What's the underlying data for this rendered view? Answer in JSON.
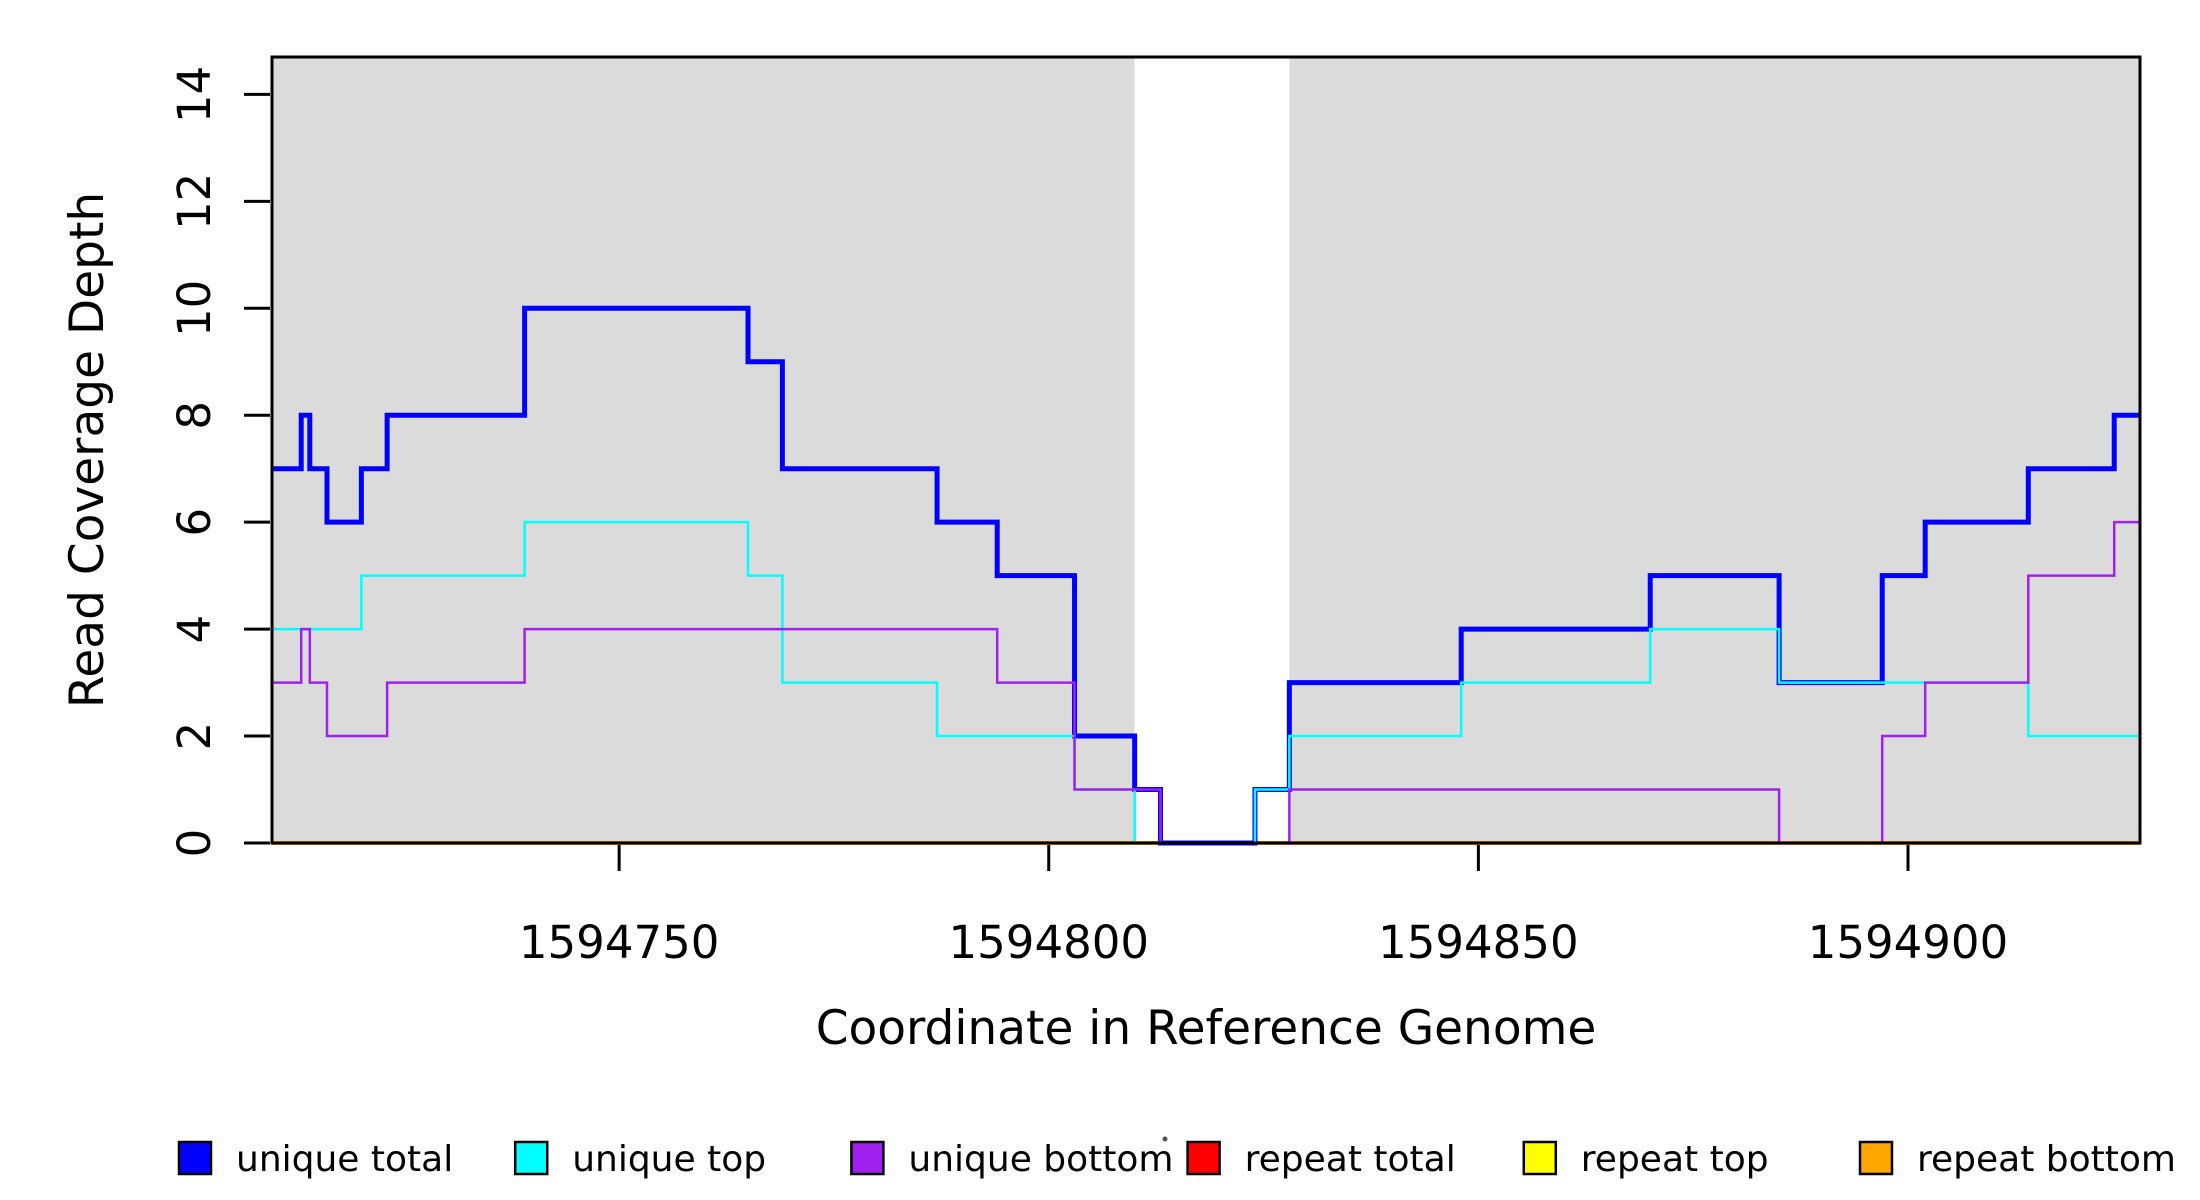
{
  "chart_data": {
    "type": "step-line",
    "title": "",
    "xlabel": "Coordinate in Reference Genome",
    "ylabel": "Read Coverage Depth",
    "xlim": [
      1594709.6,
      1594927.0
    ],
    "ylim": [
      0,
      14.7
    ],
    "grid": false,
    "x_ticks": [
      {
        "value": 1594750,
        "label": "1594750"
      },
      {
        "value": 1594800,
        "label": "1594800"
      },
      {
        "value": 1594850,
        "label": "1594850"
      },
      {
        "value": 1594900,
        "label": "1594900"
      }
    ],
    "y_ticks": [
      {
        "value": 0,
        "label": "0"
      },
      {
        "value": 2,
        "label": "2"
      },
      {
        "value": 4,
        "label": "4"
      },
      {
        "value": 6,
        "label": "6"
      },
      {
        "value": 8,
        "label": "8"
      },
      {
        "value": 10,
        "label": "10"
      },
      {
        "value": 12,
        "label": "12"
      },
      {
        "value": 14,
        "label": "14"
      }
    ],
    "background_bands": [
      {
        "name": "shaded-region-left",
        "x0": 1594709.6,
        "x1": 1594810.0,
        "color": "#dbdbdb"
      },
      {
        "name": "shaded-region-right",
        "x0": 1594828.0,
        "x1": 1594927.0,
        "color": "#dbdbdb"
      }
    ],
    "gap_band": {
      "name": "unshaded-gap",
      "x0": 1594810.0,
      "x1": 1594828.0,
      "color": "#ffffff"
    },
    "series": [
      {
        "name": "repeat total",
        "color": "#ff0000",
        "stroke_width": 3.5,
        "steps": [
          [
            1594710,
            0
          ]
        ]
      },
      {
        "name": "repeat top",
        "color": "#ffff00",
        "stroke_width": 2.5,
        "steps": [
          [
            1594710,
            0
          ]
        ]
      },
      {
        "name": "repeat bottom",
        "color": "#ffa500",
        "stroke_width": 3.5,
        "steps": [
          [
            1594710,
            0
          ]
        ]
      },
      {
        "name": "unique total",
        "color": "#0000ff",
        "stroke_width": 5,
        "steps": [
          [
            1594710,
            7
          ],
          [
            1594713,
            8
          ],
          [
            1594714,
            7
          ],
          [
            1594716,
            6
          ],
          [
            1594720,
            7
          ],
          [
            1594723,
            8
          ],
          [
            1594739,
            10
          ],
          [
            1594765,
            9
          ],
          [
            1594769,
            7
          ],
          [
            1594787,
            6
          ],
          [
            1594794,
            5
          ],
          [
            1594803,
            2
          ],
          [
            1594810,
            1
          ],
          [
            1594813,
            0
          ],
          [
            1594824,
            1
          ],
          [
            1594828,
            3
          ],
          [
            1594848,
            4
          ],
          [
            1594870,
            5
          ],
          [
            1594885,
            3
          ],
          [
            1594897,
            5
          ],
          [
            1594902,
            6
          ],
          [
            1594914,
            7
          ],
          [
            1594924,
            8
          ]
        ]
      },
      {
        "name": "unique top",
        "color": "#00ffff",
        "stroke_width": 2.5,
        "steps": [
          [
            1594710,
            4
          ],
          [
            1594720,
            5
          ],
          [
            1594739,
            6
          ],
          [
            1594765,
            5
          ],
          [
            1594769,
            3
          ],
          [
            1594787,
            2
          ],
          [
            1594803,
            1
          ],
          [
            1594810,
            0
          ],
          [
            1594824,
            1
          ],
          [
            1594828,
            2
          ],
          [
            1594848,
            3
          ],
          [
            1594870,
            4
          ],
          [
            1594885,
            3
          ],
          [
            1594914,
            2
          ]
        ]
      },
      {
        "name": "unique bottom",
        "color": "#a020f0",
        "stroke_width": 2.5,
        "steps": [
          [
            1594710,
            3
          ],
          [
            1594713,
            4
          ],
          [
            1594714,
            3
          ],
          [
            1594716,
            2
          ],
          [
            1594723,
            3
          ],
          [
            1594739,
            4
          ],
          [
            1594794,
            3
          ],
          [
            1594803,
            1
          ],
          [
            1594813,
            0
          ],
          [
            1594828,
            1
          ],
          [
            1594885,
            0
          ],
          [
            1594897,
            2
          ],
          [
            1594902,
            3
          ],
          [
            1594914,
            5
          ],
          [
            1594924,
            6
          ]
        ]
      }
    ],
    "legend": {
      "position": "bottom",
      "items": [
        {
          "label": "unique total",
          "color": "#0000ff"
        },
        {
          "label": "unique top",
          "color": "#00ffff"
        },
        {
          "label": "unique bottom",
          "color": "#a020f0"
        },
        {
          "label": "repeat total",
          "color": "#ff0000"
        },
        {
          "label": "repeat top",
          "color": "#ffff00"
        },
        {
          "label": "repeat bottom",
          "color": "#ffa500"
        }
      ]
    },
    "axis_color": "#000000"
  },
  "artifact_dot": {
    "color": "#555555"
  }
}
